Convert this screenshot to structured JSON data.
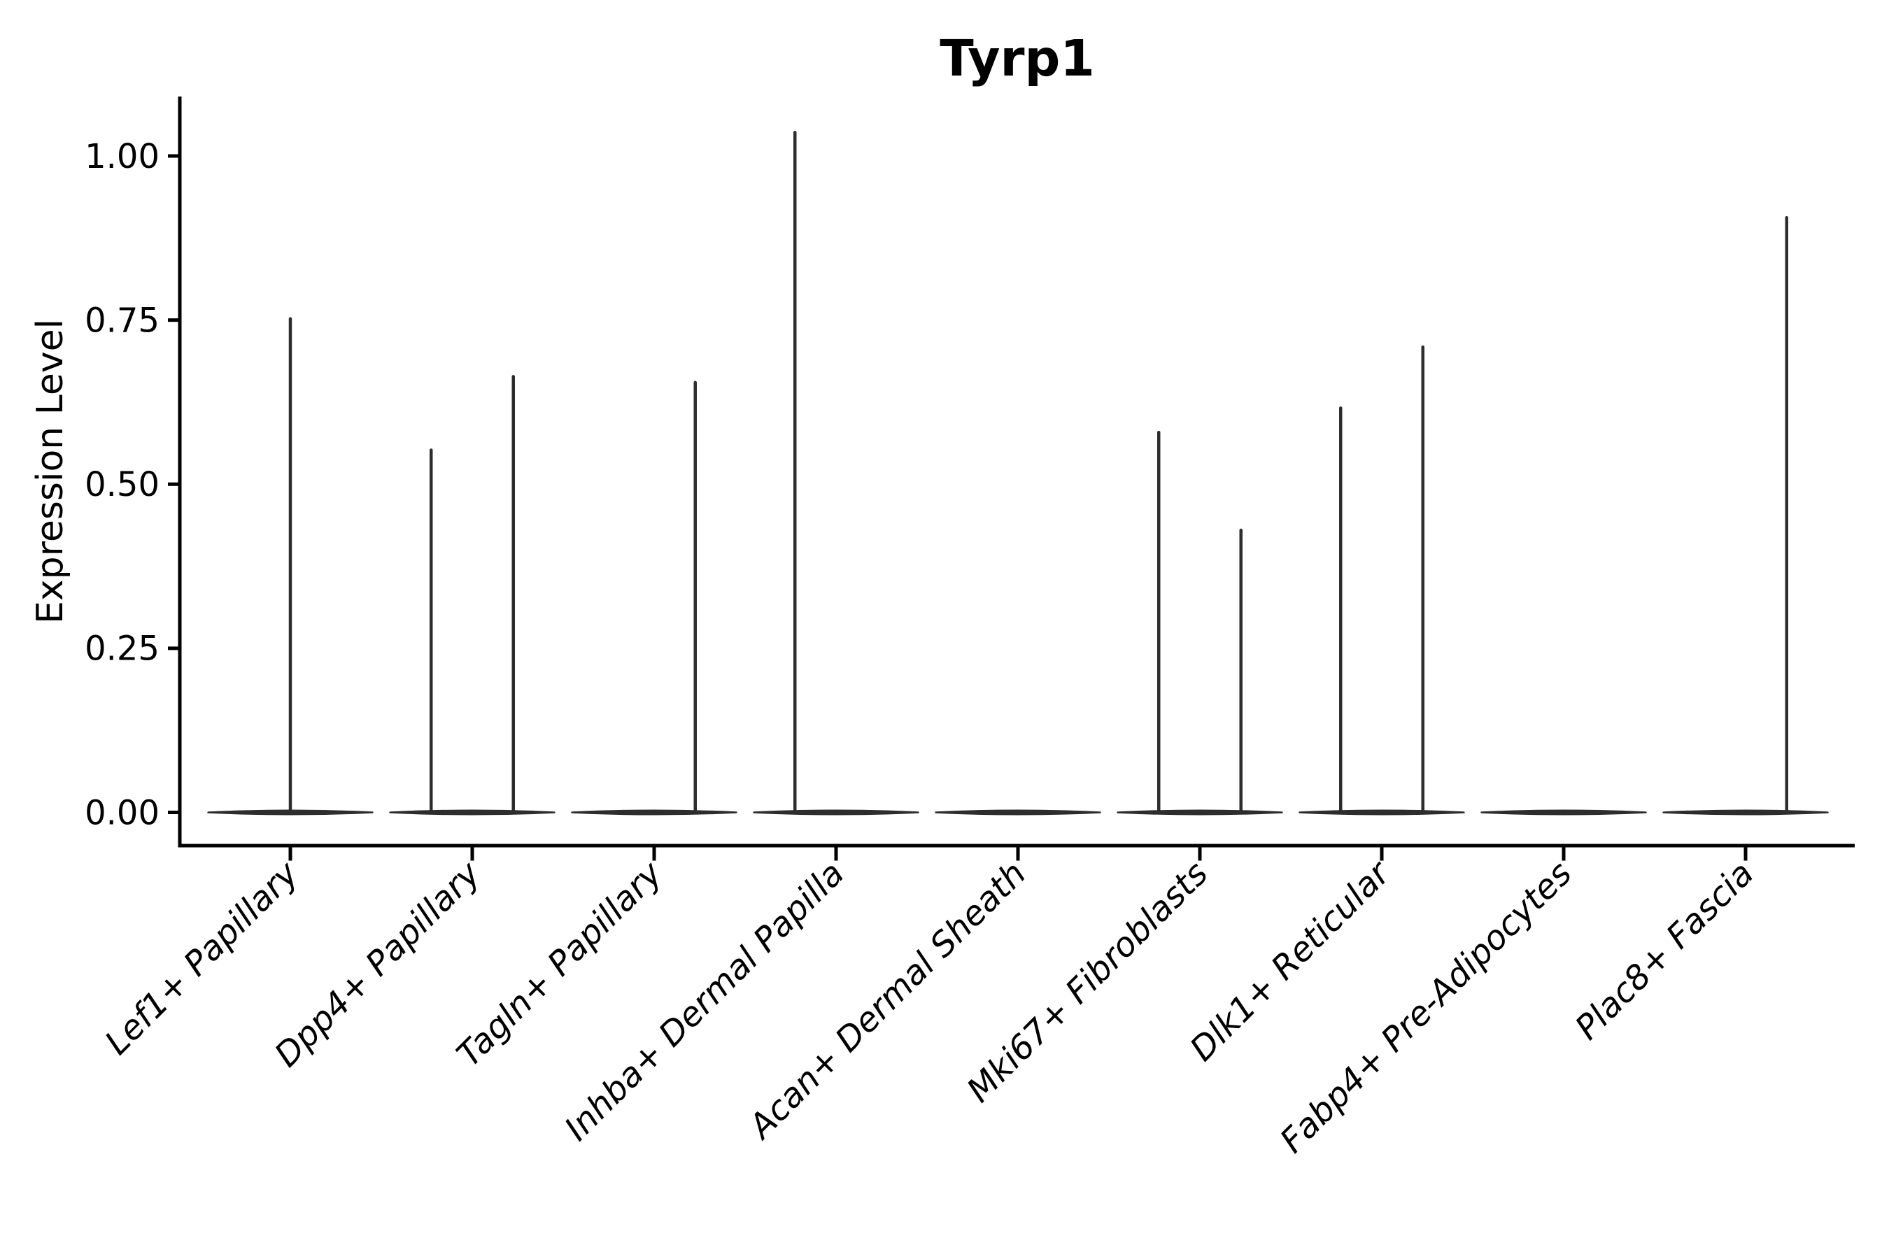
{
  "chart_data": {
    "type": "violin",
    "title": "Tyrp1",
    "ylabel": "Expression Level",
    "xlabel": "",
    "yticks": [
      "0.00",
      "0.25",
      "0.50",
      "0.75",
      "1.00"
    ],
    "ylim": [
      -0.05,
      1.09
    ],
    "grid": false,
    "legend": null,
    "x_tick_rotation": 45,
    "x_tick_style": "italic",
    "categories": [
      "Lef1+ Papillary",
      "Dpp4+ Papillary",
      "Tagln+ Papillary",
      "Inhba+ Dermal Papilla",
      "Acan+ Dermal Sheath",
      "Mki67+ Fibroblasts",
      "Dlk1+ Reticular",
      "Fabp4+ Pre-Adipocytes",
      "Plac8+ Fascia"
    ],
    "violins": [
      {
        "category": "Lef1+ Papillary",
        "base_value": 0,
        "spikes": [
          {
            "offset": 0,
            "value": 0.752
          }
        ]
      },
      {
        "category": "Dpp4+ Papillary",
        "base_value": 0,
        "spikes": [
          {
            "offset": -0.25,
            "value": 0.552
          },
          {
            "offset": 0.25,
            "value": 0.664
          }
        ]
      },
      {
        "category": "Tagln+ Papillary",
        "base_value": 0,
        "spikes": [
          {
            "offset": 0.25,
            "value": 0.655
          }
        ]
      },
      {
        "category": "Inhba+ Dermal Papilla",
        "base_value": 0,
        "spikes": [
          {
            "offset": -0.25,
            "value": 1.036
          }
        ]
      },
      {
        "category": "Acan+ Dermal Sheath",
        "base_value": 0,
        "spikes": []
      },
      {
        "category": "Mki67+ Fibroblasts",
        "base_value": 0,
        "spikes": [
          {
            "offset": -0.25,
            "value": 0.579
          },
          {
            "offset": 0.25,
            "value": 0.43
          }
        ]
      },
      {
        "category": "Dlk1+ Reticular",
        "base_value": 0,
        "spikes": [
          {
            "offset": -0.25,
            "value": 0.616
          },
          {
            "offset": 0.25,
            "value": 0.709
          }
        ]
      },
      {
        "category": "Fabp4+ Pre-Adipocytes",
        "base_value": 0,
        "spikes": []
      },
      {
        "category": "Plac8+ Fascia",
        "base_value": 0,
        "spikes": [
          {
            "offset": 0.25,
            "value": 0.906
          }
        ]
      }
    ],
    "colors": {
      "violin_line": "#2d2d2d",
      "axis": "#000000",
      "text": "#000000",
      "background": "#ffffff"
    }
  }
}
